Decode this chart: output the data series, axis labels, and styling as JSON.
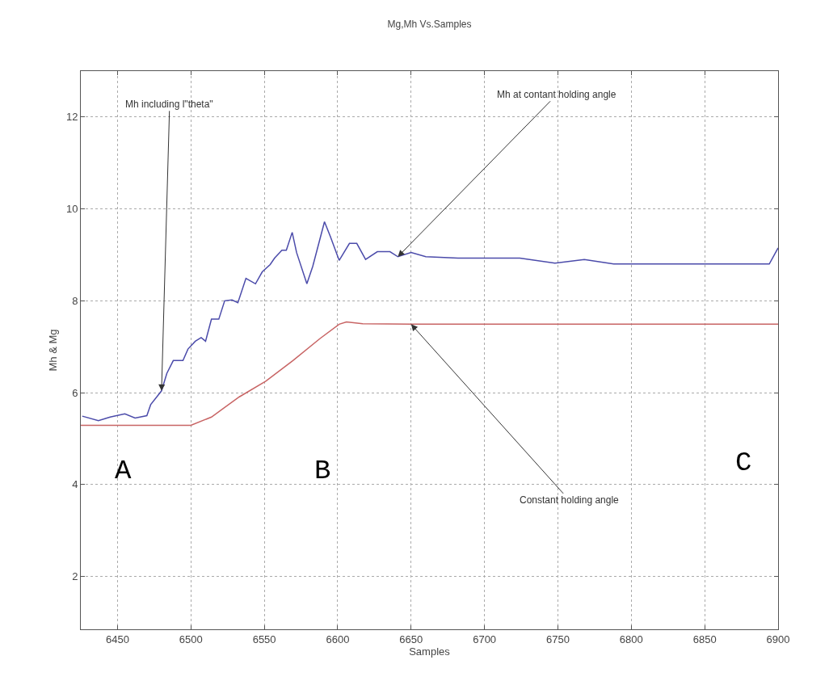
{
  "chart_data": {
    "type": "line",
    "title": "Mg,Mh Vs.Samples",
    "xlabel": "Samples",
    "ylabel": "Mh & Mg",
    "xlim": [
      6425,
      6900
    ],
    "xticks": [
      6450,
      6500,
      6550,
      6600,
      6650,
      6700,
      6750,
      6800,
      6850,
      6900
    ],
    "ylim": [
      0.85,
      13
    ],
    "yticks": [
      2,
      4,
      6,
      8,
      10,
      12
    ],
    "grid": true,
    "line_style": "solid",
    "series": [
      {
        "color": "#4b4baa",
        "x": [
          6426,
          6437,
          6445,
          6455,
          6462,
          6470,
          6472.6,
          6480,
          6483.6,
          6488,
          6494.6,
          6498,
          6503,
          6507,
          6510,
          6514,
          6519,
          6523,
          6528,
          6532,
          6537.5,
          6544,
          6548.6,
          6554,
          6557,
          6562,
          6565,
          6569,
          6572,
          6579,
          6583,
          6591,
          6595,
          6601,
          6608,
          6613,
          6619,
          6627,
          6635.6,
          6641,
          6650,
          6660,
          6682,
          6700,
          6724,
          6748,
          6768,
          6788,
          6828,
          6865,
          6894,
          6900
        ],
        "values": [
          5.49,
          5.39,
          5.47,
          5.54,
          5.45,
          5.5,
          5.74,
          6.04,
          6.42,
          6.7,
          6.7,
          6.95,
          7.12,
          7.2,
          7.12,
          7.6,
          7.6,
          8.0,
          8.02,
          7.96,
          8.49,
          8.37,
          8.63,
          8.79,
          8.93,
          9.1,
          9.1,
          9.49,
          9.05,
          8.37,
          8.75,
          9.72,
          9.4,
          8.88,
          9.25,
          9.25,
          8.9,
          9.07,
          9.07,
          8.96,
          9.05,
          8.96,
          8.93,
          8.93,
          8.93,
          8.82,
          8.9,
          8.8,
          8.8,
          8.8,
          8.8,
          9.15
        ]
      },
      {
        "color": "#c86464",
        "x": [
          6425,
          6500,
          6514,
          6533,
          6551,
          6569.5,
          6588,
          6601,
          6606,
          6617,
          6650,
          6900
        ],
        "values": [
          5.29,
          5.29,
          5.47,
          5.91,
          6.25,
          6.7,
          7.18,
          7.49,
          7.54,
          7.5,
          7.49,
          7.49
        ]
      }
    ],
    "annotations": [
      {
        "text": "Mh including l\"theta\"",
        "x": 6480,
        "y": 6.04
      },
      {
        "text": "Mh at contant holding angle",
        "x": 6641,
        "y": 8.96
      },
      {
        "text": "Constant holding angle",
        "x": 6650,
        "y": 7.49
      },
      "A",
      "B",
      "C"
    ]
  }
}
